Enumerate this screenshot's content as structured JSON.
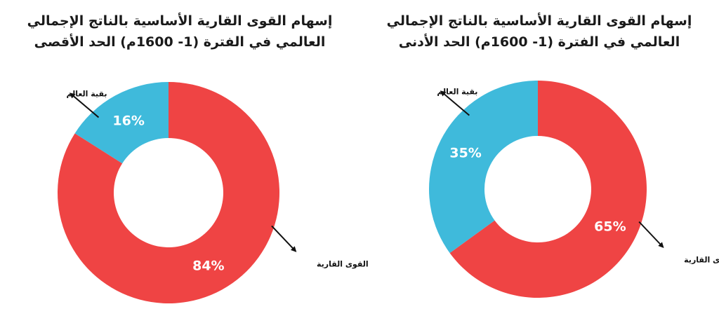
{
  "chart_data": [
    {
      "type": "pie",
      "title": "إسهام القوى القارية الأساسية بالناتج الإجمالي العالمي في الفترة (1- 1600م) الحد الأقصى",
      "title_lines": [
        "إسهام القوى القارية الأساسية بالناتج الإجمالي",
        "العالمي في الفترة (1- 1600م) الحد الأقصى"
      ],
      "donut": true,
      "slices": [
        {
          "label": "القوى القارية",
          "value": 84,
          "value_label": "84%",
          "color": "#ef4444"
        },
        {
          "label": "بقية العالم",
          "value": 16,
          "value_label": "16%",
          "color": "#3fbadb"
        }
      ]
    },
    {
      "type": "pie",
      "title": "إسهام القوى القارية الأساسية بالناتج الإجمالي العالمي في الفترة (1- 1600م) الحد الأدنى",
      "title_lines": [
        "إسهام القوى القارية الأساسية بالناتج الإجمالي",
        "العالمي في الفترة (1- 1600م) الحد الأدنى"
      ],
      "donut": true,
      "slices": [
        {
          "label": "القوى القارية",
          "value": 65,
          "value_label": "65%",
          "color": "#ef4444"
        },
        {
          "label": "بقية العالم",
          "value": 35,
          "value_label": "35%",
          "color": "#3fbadb"
        }
      ]
    }
  ]
}
